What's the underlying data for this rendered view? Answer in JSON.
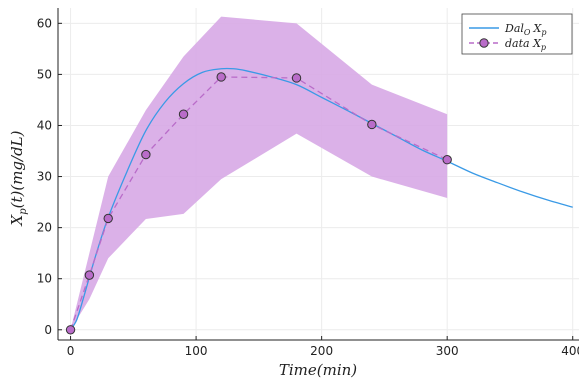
{
  "chart_data": {
    "type": "line",
    "xlabel": "Time(min)",
    "ylabel": "X_p(t)(mg/dL)",
    "xlim": [
      -10,
      405
    ],
    "ylim": [
      -2,
      63
    ],
    "xticks": [
      0,
      100,
      200,
      300,
      400
    ],
    "yticks": [
      0,
      10,
      20,
      30,
      40,
      50,
      60
    ],
    "grid": true,
    "legend": "top-right",
    "colors": {
      "model": "#3a9ae6",
      "data": "#b96cc9",
      "band": "#d7a8e6",
      "marker_edge": "#333333"
    },
    "series": [
      {
        "name": "Dal_O X_p",
        "kind": "line",
        "x": [
          0,
          5,
          10,
          20,
          30,
          45,
          60,
          75,
          90,
          105,
          120,
          130,
          140,
          160,
          180,
          200,
          220,
          240,
          260,
          280,
          300,
          320,
          340,
          360,
          380,
          400
        ],
        "y": [
          0,
          2,
          6,
          14.5,
          22,
          31,
          39,
          44.5,
          48.2,
          50.4,
          51.1,
          51.1,
          50.7,
          49.5,
          48,
          45.5,
          43,
          40.4,
          37.8,
          35.2,
          33,
          30.7,
          28.8,
          27,
          25.4,
          24
        ]
      },
      {
        "name": "data X_p",
        "kind": "line+marker",
        "x": [
          0,
          15,
          30,
          60,
          90,
          120,
          180,
          240,
          300
        ],
        "y": [
          0,
          10.7,
          21.8,
          34.3,
          42.2,
          49.5,
          49.3,
          40.2,
          33.3
        ]
      }
    ],
    "band": {
      "x": [
        0,
        15,
        30,
        60,
        90,
        120,
        180,
        240,
        300
      ],
      "lower": [
        0,
        6,
        14,
        21.7,
        22.7,
        29.5,
        38.4,
        30,
        25.8
      ],
      "upper": [
        0,
        15,
        30,
        43,
        53.5,
        61.3,
        60,
        48,
        42.2
      ]
    }
  },
  "legend": {
    "model_label_main": "Dal",
    "model_label_sub": "O",
    "model_label_tail": "X",
    "model_label_tail_sub": "p",
    "data_label_main": "data X",
    "data_label_sub": "p"
  }
}
